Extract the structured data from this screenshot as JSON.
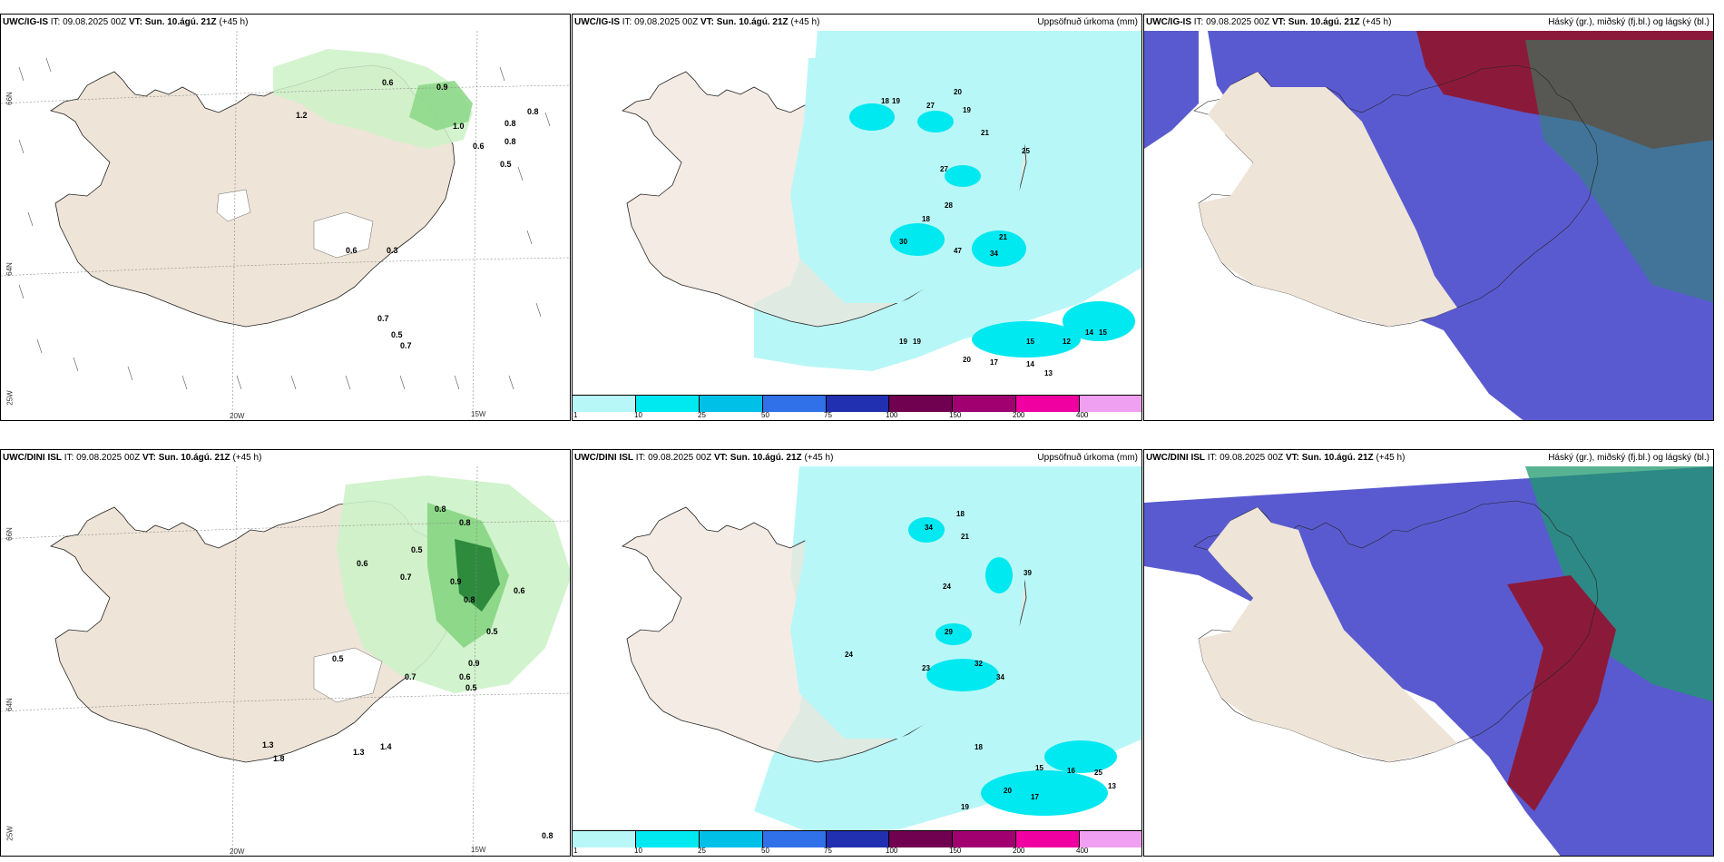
{
  "rows": [
    {
      "panels": [
        {
          "model": "UWC/IG-IS",
          "it_label": "IT:",
          "init": "09.08.2025 00Z",
          "vt_label": "VT:",
          "valid": "Sun. 10.ágú. 21Z",
          "lead": "(+45 h)",
          "title": "",
          "labels": [
            "0.6",
            "0.9",
            "0.8",
            "1.2",
            "1.0",
            "0.8",
            "0.8",
            "0.6",
            "0.5",
            "0.6",
            "0.3",
            "0.7",
            "0.5",
            "0.7"
          ]
        },
        {
          "model": "UWC/IG-IS",
          "it_label": "IT:",
          "init": "09.08.2025 00Z",
          "vt_label": "VT:",
          "valid": "Sun. 10.ágú. 21Z",
          "lead": "(+45 h)",
          "title": "Uppsöfnuð úrkoma (mm)",
          "labels": [
            "18",
            "19",
            "20",
            "27",
            "19",
            "21",
            "25",
            "27",
            "28",
            "18",
            "30",
            "47",
            "34",
            "21",
            "19",
            "19",
            "14",
            "15",
            "20",
            "17",
            "14",
            "12",
            "13",
            "15"
          ]
        },
        {
          "model": "UWC/IG-IS",
          "it_label": "IT:",
          "init": "09.08.2025 00Z",
          "vt_label": "VT:",
          "valid": "Sun. 10.ágú. 21Z",
          "lead": "(+45 h)",
          "title": "Háský (gr.), miðský (fj.bl.) og lágský (bl.)",
          "labels": []
        }
      ]
    },
    {
      "panels": [
        {
          "model": "UWC/DINI ISL",
          "it_label": "IT:",
          "init": "09.08.2025 00Z",
          "vt_label": "VT:",
          "valid": "Sun. 10.ágú. 21Z",
          "lead": "(+45 h)",
          "title": "",
          "labels": [
            "0.8",
            "0.8",
            "0.6",
            "0.5",
            "0.7",
            "0.9",
            "0.8",
            "0.6",
            "0.5",
            "0.5",
            "0.7",
            "0.9",
            "0.6",
            "0.5",
            "1.3",
            "1.8",
            "1.3",
            "1.4",
            "0.8"
          ]
        },
        {
          "model": "UWC/DINI ISL",
          "it_label": "IT:",
          "init": "09.08.2025 00Z",
          "vt_label": "VT:",
          "valid": "Sun. 10.ágú. 21Z",
          "lead": "(+45 h)",
          "title": "Uppsöfnuð úrkoma (mm)",
          "labels": [
            "18",
            "34",
            "21",
            "24",
            "39",
            "29",
            "24",
            "23",
            "32",
            "34",
            "18",
            "15",
            "25",
            "20",
            "17",
            "19",
            "16",
            "13"
          ]
        },
        {
          "model": "UWC/DINI ISL",
          "it_label": "IT:",
          "init": "09.08.2025 00Z",
          "vt_label": "VT:",
          "valid": "Sun. 10.ágú. 21Z",
          "lead": "(+45 h)",
          "title": "Háský (gr.), miðský (fj.bl.) og lágský (bl.)",
          "labels": []
        }
      ]
    }
  ],
  "colorbar": {
    "ticks": [
      "1",
      "10",
      "25",
      "50",
      "75",
      "100",
      "150",
      "200",
      "400"
    ],
    "colors": [
      "#b8f7f7",
      "#00e8f0",
      "#00c0e8",
      "#3070e8",
      "#2030b0",
      "#700050",
      "#a00070",
      "#f000a0",
      "#f0a0f0"
    ]
  },
  "axis_labels": {
    "lat_66": "66N",
    "lat_64": "64N",
    "lon_20": "20W",
    "lon_15": "15W",
    "lon_25": "25W"
  },
  "colors": {
    "land": "#efe4d8",
    "precip_light": "#b8f7f7",
    "precip_med": "#00e8f0",
    "precip_dark": "#00c0e8",
    "green_light": "#ccf2c8",
    "green_med": "#8ed889",
    "green_dark": "#2e8b3e",
    "cloud_high": "#8b1a3a",
    "cloud_mid": "#2f2fa8",
    "cloud_low": "#6060d0"
  }
}
